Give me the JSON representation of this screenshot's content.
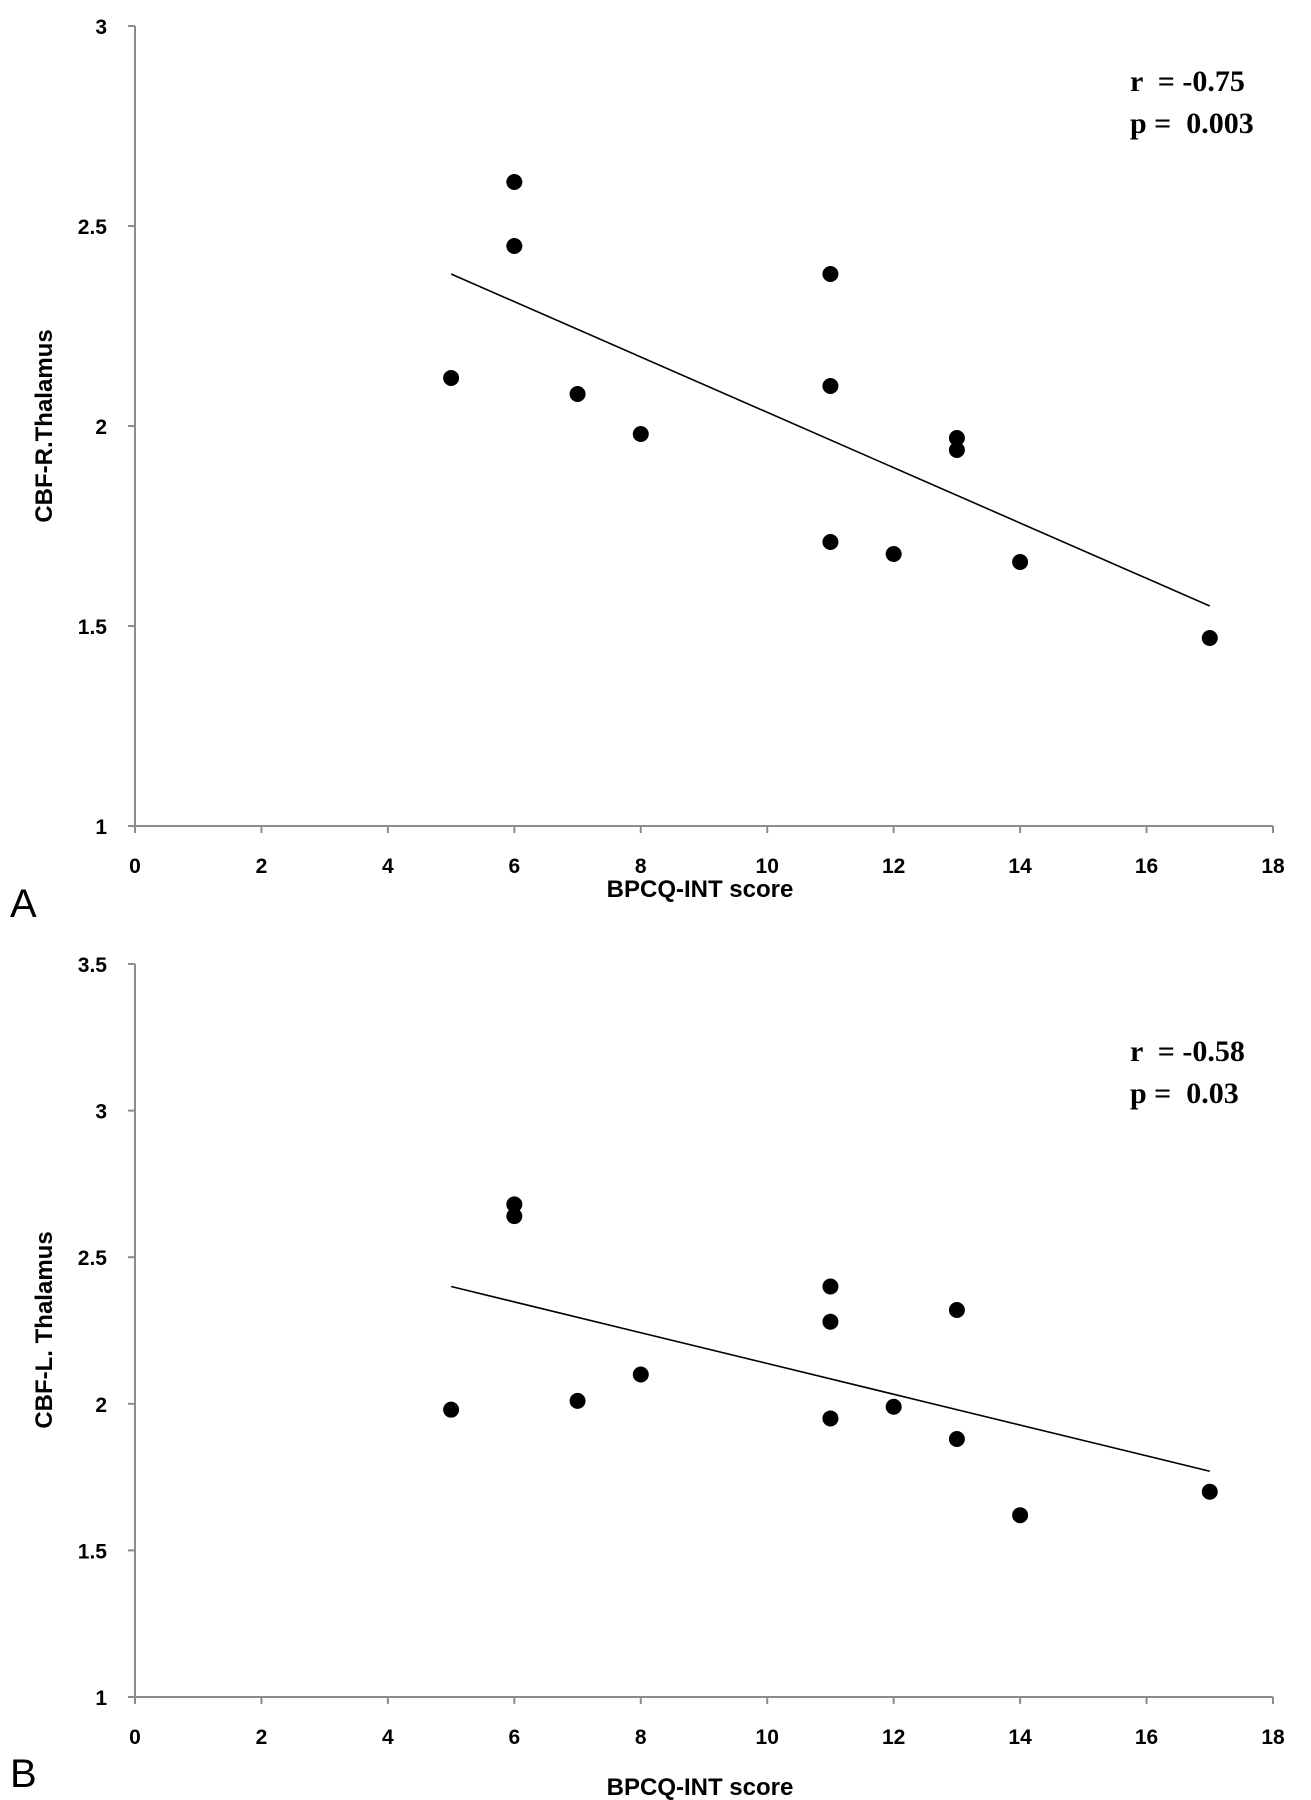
{
  "chart_data": [
    {
      "type": "scatter",
      "panel_label": "A",
      "title": "",
      "xlabel": "BPCQ-INT score",
      "ylabel": "CBF-R.Thalamus",
      "xlim": [
        0,
        18
      ],
      "ylim": [
        1,
        3
      ],
      "xticks": [
        "0",
        "2",
        "4",
        "6",
        "8",
        "10",
        "12",
        "14",
        "16",
        "18"
      ],
      "yticks": [
        "1",
        "1.5",
        "2",
        "2.5",
        "3"
      ],
      "grid": false,
      "stats": {
        "r_text": "r  = -0.75",
        "p_text": "p =  0.003"
      },
      "points": [
        {
          "x": 5,
          "y": 2.12
        },
        {
          "x": 6,
          "y": 2.61
        },
        {
          "x": 6,
          "y": 2.45
        },
        {
          "x": 7,
          "y": 2.08
        },
        {
          "x": 8,
          "y": 1.98
        },
        {
          "x": 11,
          "y": 2.38
        },
        {
          "x": 11,
          "y": 2.1
        },
        {
          "x": 11,
          "y": 1.71
        },
        {
          "x": 12,
          "y": 1.68
        },
        {
          "x": 13,
          "y": 1.97
        },
        {
          "x": 13,
          "y": 1.94
        },
        {
          "x": 14,
          "y": 1.66
        },
        {
          "x": 17,
          "y": 1.47
        }
      ],
      "trendline": {
        "x": [
          5,
          17
        ],
        "y": [
          2.38,
          1.55
        ]
      }
    },
    {
      "type": "scatter",
      "panel_label": "B",
      "title": "",
      "xlabel": "BPCQ-INT score",
      "ylabel": "CBF-L. Thalamus",
      "xlim": [
        0,
        18
      ],
      "ylim": [
        1,
        3.5
      ],
      "xticks": [
        "0",
        "2",
        "4",
        "6",
        "8",
        "10",
        "12",
        "14",
        "16",
        "18"
      ],
      "yticks": [
        "1",
        "1.5",
        "2",
        "2.5",
        "3",
        "3.5"
      ],
      "grid": false,
      "stats": {
        "r_text": "r  = -0.58",
        "p_text": "p =  0.03"
      },
      "points": [
        {
          "x": 5,
          "y": 1.98
        },
        {
          "x": 6,
          "y": 2.68
        },
        {
          "x": 6,
          "y": 2.64
        },
        {
          "x": 7,
          "y": 2.01
        },
        {
          "x": 8,
          "y": 2.1
        },
        {
          "x": 11,
          "y": 2.4
        },
        {
          "x": 11,
          "y": 2.28
        },
        {
          "x": 11,
          "y": 1.95
        },
        {
          "x": 12,
          "y": 1.99
        },
        {
          "x": 13,
          "y": 2.32
        },
        {
          "x": 13,
          "y": 1.88
        },
        {
          "x": 14,
          "y": 1.62
        },
        {
          "x": 17,
          "y": 1.7
        }
      ],
      "trendline": {
        "x": [
          5,
          17
        ],
        "y": [
          2.4,
          1.77
        ]
      }
    }
  ],
  "colors": {
    "point": "#000000",
    "axis": "#8c8c8c",
    "trendline": "#000000"
  }
}
